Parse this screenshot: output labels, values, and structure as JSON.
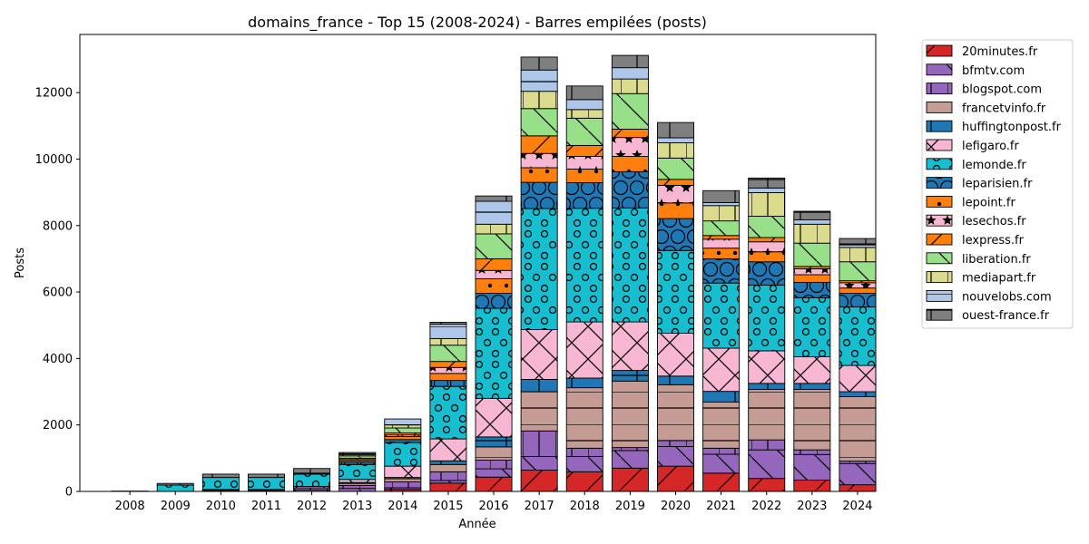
{
  "chart_data": {
    "type": "bar",
    "stacked": true,
    "title": "domains_france - Top 15 (2008-2024) - Barres empilées (posts)",
    "xlabel": "Année",
    "ylabel": "Posts",
    "ylim": [
      0,
      13750
    ],
    "yticks": [
      0,
      2000,
      4000,
      6000,
      8000,
      10000,
      12000
    ],
    "grid": false,
    "legend_position": "outside-right-top",
    "categories": [
      "2008",
      "2009",
      "2010",
      "2011",
      "2012",
      "2013",
      "2014",
      "2015",
      "2016",
      "2017",
      "2018",
      "2019",
      "2020",
      "2021",
      "2022",
      "2023",
      "2024"
    ],
    "series": [
      {
        "name": "20minutes.fr",
        "color": "#d62728",
        "hatch": "/",
        "values": [
          0,
          0,
          0,
          0,
          0,
          0,
          60,
          250,
          430,
          640,
          590,
          700,
          760,
          550,
          390,
          340,
          200
        ]
      },
      {
        "name": "bfmtv.com",
        "color": "#9467bd",
        "hatch": "\\",
        "values": [
          0,
          0,
          0,
          0,
          50,
          90,
          50,
          80,
          250,
          410,
          460,
          530,
          590,
          570,
          860,
          770,
          640
        ]
      },
      {
        "name": "blogspot.com",
        "color": "#9467bd",
        "hatch": "|",
        "values": [
          0,
          0,
          30,
          30,
          60,
          90,
          180,
          260,
          260,
          770,
          250,
          90,
          180,
          180,
          300,
          140,
          70
        ]
      },
      {
        "name": "francetvinfo.fr",
        "color": "#c49c94",
        "hatch": "-",
        "values": [
          0,
          0,
          0,
          0,
          0,
          60,
          90,
          220,
          400,
          1180,
          1820,
          2000,
          1680,
          1390,
          1520,
          1820,
          1940
        ]
      },
      {
        "name": "huffingtonpost.fr",
        "color": "#1f77b4",
        "hatch": "+",
        "values": [
          0,
          0,
          0,
          0,
          0,
          30,
          40,
          110,
          300,
          370,
          290,
          320,
          260,
          320,
          180,
          180,
          150
        ]
      },
      {
        "name": "lefigaro.fr",
        "color": "#f7b6d2",
        "hatch": "x",
        "values": [
          0,
          0,
          30,
          30,
          40,
          90,
          340,
          660,
          1160,
          1500,
          1690,
          1460,
          1290,
          1300,
          980,
          800,
          790
        ]
      },
      {
        "name": "lemonde.fr",
        "color": "#17becf",
        "hatch": "o",
        "values": [
          10,
          190,
          360,
          360,
          370,
          450,
          710,
          1580,
          2710,
          3640,
          3420,
          3430,
          2490,
          1960,
          1980,
          1780,
          1760
        ]
      },
      {
        "name": "leparisien.fr",
        "color": "#1f77b4",
        "hatch": "O",
        "values": [
          0,
          0,
          0,
          0,
          20,
          60,
          90,
          180,
          450,
          790,
          770,
          1090,
          960,
          730,
          700,
          460,
          410
        ]
      },
      {
        "name": "lepoint.fr",
        "color": "#ff7f0e",
        "hatch": ".",
        "values": [
          0,
          0,
          0,
          0,
          0,
          50,
          90,
          210,
          440,
          440,
          410,
          460,
          470,
          320,
          300,
          230,
          160
        ]
      },
      {
        "name": "lesechos.fr",
        "color": "#f7b6d2",
        "hatch": "*",
        "values": [
          0,
          0,
          0,
          0,
          0,
          40,
          50,
          180,
          250,
          430,
          380,
          570,
          530,
          270,
          300,
          180,
          160
        ]
      },
      {
        "name": "lexpress.fr",
        "color": "#ff7f0e",
        "hatch": "/",
        "values": [
          0,
          0,
          0,
          0,
          0,
          40,
          60,
          180,
          350,
          530,
          330,
          250,
          180,
          110,
          130,
          70,
          60
        ]
      },
      {
        "name": "liberation.fr",
        "color": "#98df8a",
        "hatch": "\\",
        "values": [
          0,
          0,
          0,
          0,
          0,
          70,
          150,
          490,
          750,
          820,
          820,
          1070,
          640,
          440,
          640,
          700,
          570
        ]
      },
      {
        "name": "mediapart.fr",
        "color": "#dbdb8d",
        "hatch": "|",
        "values": [
          0,
          0,
          0,
          0,
          0,
          40,
          90,
          200,
          290,
          520,
          260,
          440,
          460,
          460,
          710,
          570,
          430
        ]
      },
      {
        "name": "nouvelobs.com",
        "color": "#aec7e8",
        "hatch": "-",
        "values": [
          0,
          0,
          0,
          0,
          0,
          20,
          180,
          430,
          690,
          640,
          300,
          340,
          150,
          90,
          140,
          130,
          110
        ]
      },
      {
        "name": "ouest-france.fr",
        "color": "#7f7f7f",
        "hatch": "+",
        "values": [
          0,
          50,
          100,
          100,
          150,
          40,
          0,
          60,
          160,
          390,
          410,
          370,
          460,
          360,
          300,
          260,
          160
        ]
      }
    ]
  }
}
